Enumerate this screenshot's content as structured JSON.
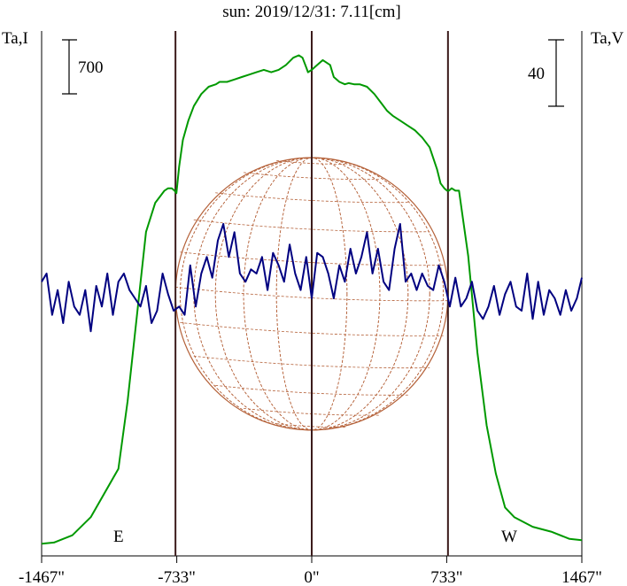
{
  "title": "sun: 2019/12/31: 7.11[cm]",
  "left_axis_label": "Ta,I",
  "right_axis_label": "Ta,V",
  "left_scale_bar": "700",
  "right_scale_bar": "40",
  "east_label": "E",
  "west_label": "W",
  "colors": {
    "intensity": "#009900",
    "polarization": "#000080",
    "grid": "#b5623a",
    "frame": "#000000",
    "title": "#000080",
    "markers": "#3b1b1b"
  },
  "chart_data": {
    "type": "line",
    "x_ticks": [
      "-1467\"",
      "-733\"",
      "0\"",
      "733\"",
      "1467\""
    ],
    "x_tick_values": [
      -1467,
      -733,
      0,
      733,
      1467
    ],
    "xlim": [
      -1467,
      1467
    ],
    "limb_markers": [
      -740,
      740
    ],
    "grid": false,
    "series": [
      {
        "id": "intensity",
        "y_range": [
          0,
          2050
        ],
        "x": [
          -1467,
          -1400,
          -1300,
          -1200,
          -1050,
          -1000,
          -950,
          -900,
          -850,
          -800,
          -780,
          -760,
          -745,
          -735,
          -720,
          -700,
          -670,
          -640,
          -600,
          -560,
          -520,
          -500,
          -460,
          -420,
          -380,
          -340,
          -300,
          -260,
          -220,
          -180,
          -140,
          -100,
          -70,
          -50,
          -30,
          -20,
          0,
          30,
          60,
          100,
          120,
          150,
          180,
          200,
          230,
          260,
          300,
          340,
          380,
          410,
          440,
          480,
          520,
          560,
          600,
          640,
          680,
          700,
          720,
          735,
          745,
          760,
          780,
          800,
          850,
          900,
          950,
          1000,
          1050,
          1100,
          1200,
          1300,
          1400,
          1467
        ],
        "y": [
          10,
          15,
          45,
          120,
          320,
          600,
          950,
          1300,
          1420,
          1470,
          1480,
          1480,
          1470,
          1460,
          1570,
          1680,
          1760,
          1820,
          1870,
          1900,
          1910,
          1920,
          1920,
          1930,
          1940,
          1950,
          1960,
          1970,
          1960,
          1970,
          1990,
          2020,
          2030,
          2020,
          1980,
          1960,
          1970,
          1990,
          2010,
          1990,
          1940,
          1920,
          1910,
          1915,
          1910,
          1910,
          1900,
          1870,
          1830,
          1800,
          1780,
          1760,
          1740,
          1720,
          1690,
          1650,
          1560,
          1500,
          1480,
          1470,
          1470,
          1480,
          1470,
          1470,
          1200,
          800,
          500,
          300,
          160,
          120,
          80,
          60,
          30,
          25
        ]
      },
      {
        "id": "polarization",
        "y_range": [
          -60,
          60
        ],
        "x": [
          -1467,
          -1440,
          -1410,
          -1380,
          -1350,
          -1320,
          -1290,
          -1260,
          -1230,
          -1200,
          -1170,
          -1140,
          -1110,
          -1080,
          -1050,
          -1020,
          -990,
          -960,
          -930,
          -900,
          -870,
          -840,
          -810,
          -780,
          -750,
          -720,
          -690,
          -660,
          -630,
          -600,
          -570,
          -540,
          -510,
          -480,
          -450,
          -420,
          -390,
          -360,
          -330,
          -300,
          -270,
          -240,
          -210,
          -180,
          -150,
          -120,
          -90,
          -60,
          -30,
          0,
          30,
          60,
          90,
          120,
          150,
          180,
          210,
          240,
          270,
          300,
          330,
          360,
          390,
          420,
          450,
          480,
          510,
          540,
          570,
          600,
          630,
          660,
          690,
          720,
          750,
          780,
          810,
          840,
          870,
          900,
          930,
          960,
          990,
          1020,
          1050,
          1080,
          1110,
          1140,
          1170,
          1200,
          1230,
          1260,
          1290,
          1320,
          1350,
          1380,
          1410,
          1440,
          1467
        ],
        "y": [
          4,
          6,
          -4,
          2,
          -6,
          4,
          -2,
          -4,
          2,
          -8,
          3,
          -2,
          6,
          -4,
          4,
          6,
          2,
          0,
          -2,
          3,
          -6,
          -3,
          6,
          1,
          -3,
          -2,
          -4,
          8,
          -2,
          6,
          10,
          5,
          14,
          18,
          10,
          16,
          6,
          4,
          7,
          6,
          10,
          2,
          11,
          8,
          4,
          13,
          6,
          2,
          10,
          0,
          11,
          10,
          6,
          0,
          8,
          4,
          12,
          6,
          10,
          16,
          6,
          12,
          4,
          2,
          12,
          18,
          4,
          6,
          2,
          6,
          3,
          2,
          8,
          4,
          -2,
          5,
          -2,
          0,
          4,
          -3,
          -5,
          -2,
          3,
          -4,
          1,
          4,
          -2,
          -3,
          6,
          -5,
          4,
          -4,
          2,
          0,
          -4,
          2,
          -3,
          0,
          5
        ]
      }
    ]
  }
}
